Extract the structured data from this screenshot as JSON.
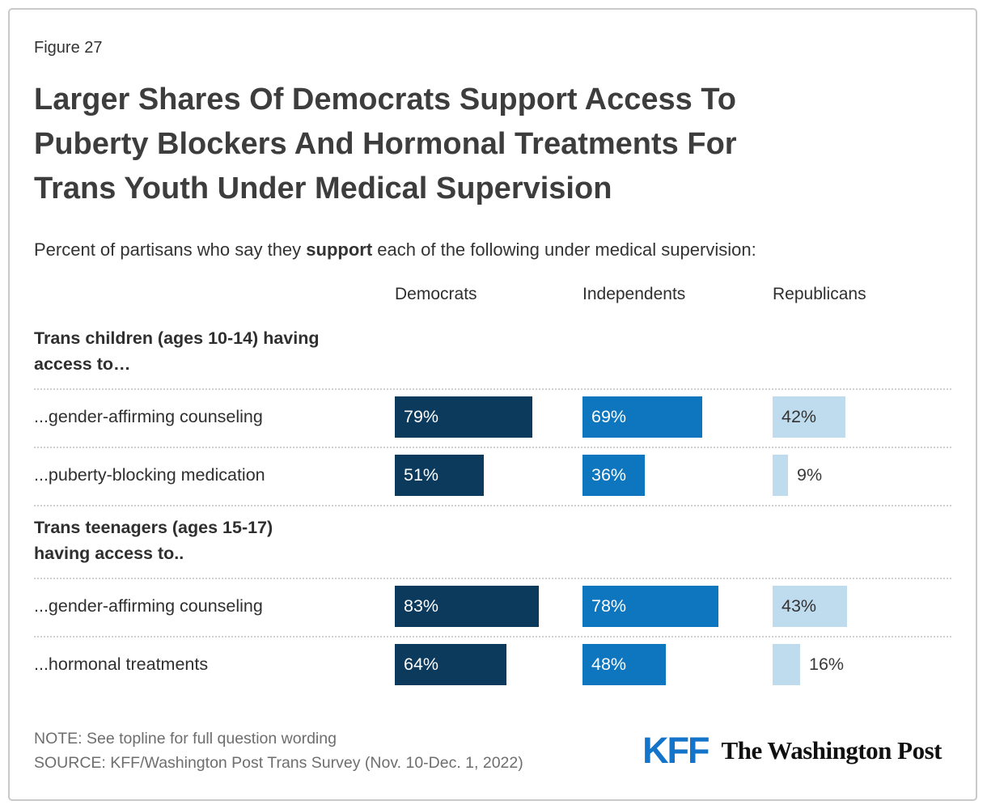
{
  "figure_label": "Figure 27",
  "title_lines": [
    "Larger Shares Of Democrats Support Access To",
    "Puberty Blockers And Hormonal Treatments For",
    "Trans Youth Under Medical Supervision"
  ],
  "subtitle": {
    "prefix": "Percent of partisans who say they ",
    "bold": "support",
    "suffix": " each of the following under medical supervision:"
  },
  "chart_data": {
    "type": "bar",
    "orientation": "horizontal",
    "unit": "%",
    "xlim": [
      0,
      100
    ],
    "value_labels": true,
    "legend_position": "column-headers-top",
    "series_names": [
      "Democrats",
      "Independents",
      "Republicans"
    ],
    "sections": [
      {
        "header_lines": [
          "Trans children (ages 10-14) having",
          "access to…"
        ],
        "rows": [
          {
            "label": "...gender-affirming counseling",
            "values": [
              79,
              69,
              42
            ],
            "value_labels": [
              "79%",
              "69%",
              "42%"
            ]
          },
          {
            "label": "...puberty-blocking medication",
            "values": [
              51,
              36,
              9
            ],
            "value_labels": [
              "51%",
              "36%",
              "9%"
            ]
          }
        ]
      },
      {
        "header_lines": [
          "Trans teenagers (ages 15-17)",
          "having access to.."
        ],
        "rows": [
          {
            "label": "...gender-affirming counseling",
            "values": [
              83,
              78,
              43
            ],
            "value_labels": [
              "83%",
              "78%",
              "43%"
            ]
          },
          {
            "label": "...hormonal treatments",
            "values": [
              64,
              48,
              16
            ],
            "value_labels": [
              "64%",
              "48%",
              "16%"
            ]
          }
        ]
      }
    ]
  },
  "footer": {
    "note": "NOTE: See topline for full question wording",
    "source": "SOURCE: KFF/Washington Post Trans Survey (Nov. 10-Dec. 1, 2022)",
    "kff_logo_text": "KFF",
    "wapo_logo_text": "The Washington Post"
  },
  "colors": {
    "democrats_bar": "#0B3A5D",
    "independents_bar": "#0D76BE",
    "republicans_bar": "#BFDCEF",
    "kff_blue": "#1374C9",
    "text_dark": "#2F2F2F",
    "note_gray": "#6E6E6E"
  }
}
